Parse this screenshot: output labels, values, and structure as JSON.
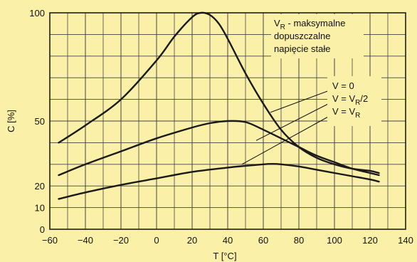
{
  "chart_data": {
    "type": "line",
    "xlabel": "T [°C]",
    "ylabel": "C [%]",
    "xlim": [
      -60,
      140
    ],
    "ylim": [
      0,
      100
    ],
    "x_ticks": [
      -60,
      -40,
      -20,
      0,
      20,
      40,
      60,
      80,
      100,
      120,
      140
    ],
    "x_tick_labels": [
      "−60",
      "−40",
      "−20",
      "0",
      "20",
      "40",
      "60",
      "80",
      "100",
      "120",
      "140"
    ],
    "y_ticks": [
      0,
      10,
      20,
      50,
      100
    ],
    "y_tick_labels": [
      "0",
      "10",
      "20",
      "50",
      "100"
    ],
    "grid": true,
    "series": [
      {
        "name": "V = 0",
        "x": [
          -55,
          -40,
          -20,
          0,
          10,
          20,
          25,
          30,
          35,
          40,
          50,
          60,
          70,
          80,
          90,
          100,
          110,
          120,
          125
        ],
        "y": [
          40,
          48,
          60,
          78,
          89,
          98,
          100,
          99,
          95,
          88,
          72,
          58,
          46,
          38,
          33,
          30,
          28,
          27,
          26
        ]
      },
      {
        "name": "V = V_R/2",
        "x": [
          -55,
          -40,
          -20,
          0,
          20,
          30,
          40,
          50,
          60,
          70,
          80,
          90,
          100,
          110,
          120,
          125
        ],
        "y": [
          25,
          30,
          36,
          42,
          47,
          49,
          50,
          49.5,
          46,
          42,
          38,
          34,
          31,
          28,
          26,
          25
        ]
      },
      {
        "name": "V = V_R",
        "x": [
          -55,
          -40,
          -20,
          0,
          20,
          40,
          50,
          60,
          65,
          70,
          80,
          90,
          100,
          110,
          120,
          125
        ],
        "y": [
          14,
          17,
          20.5,
          23.5,
          26.5,
          28.5,
          29.3,
          30,
          30.2,
          30,
          29,
          27.5,
          26,
          24.5,
          23,
          22
        ]
      }
    ],
    "legend": {
      "note": "maksymalne dopuszczalne napięcie stałe",
      "note_lines": [
        "dopuszczalne",
        "napięcie stałe"
      ],
      "note_symbol": "V",
      "note_symbol_sub": "R",
      "note_rest": " - maksymalne",
      "labels": [
        {
          "pre": "V = 0",
          "sub": "",
          "post": ""
        },
        {
          "pre": "V = V",
          "sub": "R",
          "post": "/2"
        },
        {
          "pre": "V = V",
          "sub": "R",
          "post": ""
        }
      ]
    }
  }
}
